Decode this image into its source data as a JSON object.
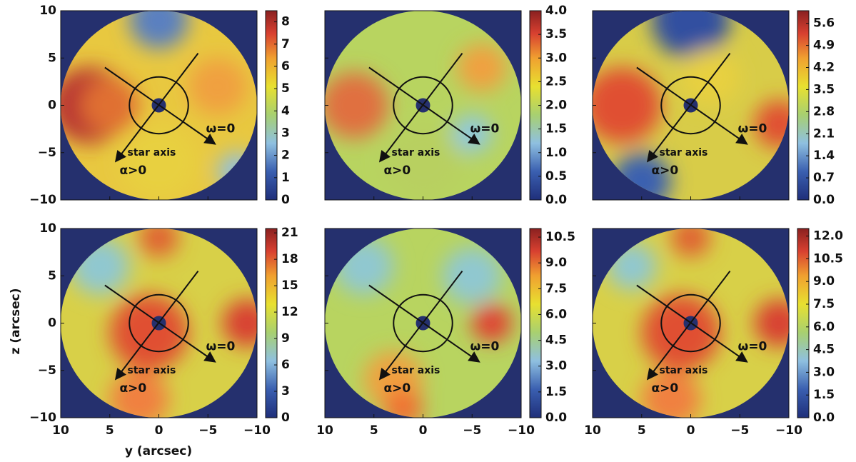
{
  "chart_data": {
    "type": "contour-grid",
    "xlabel": "y (arcsec)",
    "ylabel": "z (arcsec)",
    "xlim": [
      10,
      -10
    ],
    "ylim": [
      -10,
      10
    ],
    "xticks": [
      10,
      5,
      0,
      {
        "value": -5,
        "label": "−5"
      },
      {
        "value": -10,
        "label": "−10"
      }
    ],
    "yticks": [
      {
        "value": -10,
        "label": "−10"
      },
      {
        "value": -5,
        "label": "−5"
      },
      0,
      5,
      10
    ],
    "annotations": [
      "star axis",
      "α>0",
      "ω=0"
    ],
    "panels": [
      {
        "clim": [
          0,
          8.5
        ],
        "cticks": [
          0,
          1,
          2,
          3,
          4,
          5,
          6,
          7,
          8
        ]
      },
      {
        "clim": [
          0,
          4
        ],
        "cticks": [
          {
            "value": 0,
            "label": "0.0"
          },
          0.5,
          {
            "value": 1,
            "label": "1.0"
          },
          1.5,
          {
            "value": 2,
            "label": "2.0"
          },
          2.5,
          {
            "value": 3,
            "label": "3.0"
          },
          3.5,
          {
            "value": 4,
            "label": "4.0"
          }
        ]
      },
      {
        "clim": [
          0,
          6
        ],
        "cticks": [
          {
            "value": 0,
            "label": "0.0"
          },
          0.7,
          1.4,
          2.1,
          2.8,
          3.5,
          4.2,
          4.9,
          5.6
        ]
      },
      {
        "clim": [
          0,
          21.5
        ],
        "cticks": [
          0,
          3,
          6,
          9,
          12,
          15,
          18,
          21
        ]
      },
      {
        "clim": [
          0,
          11
        ],
        "cticks": [
          {
            "value": 0,
            "label": "0.0"
          },
          1.5,
          {
            "value": 3,
            "label": "3.0"
          },
          4.5,
          {
            "value": 6,
            "label": "6.0"
          },
          7.5,
          {
            "value": 9,
            "label": "9.0"
          },
          10.5
        ]
      },
      {
        "clim": [
          0,
          12.5
        ],
        "cticks": [
          {
            "value": 0,
            "label": "0.0"
          },
          1.5,
          {
            "value": 3,
            "label": "3.0"
          },
          4.5,
          {
            "value": 6,
            "label": "6.0"
          },
          7.5,
          {
            "value": 9,
            "label": "9.0"
          },
          10.5,
          {
            "value": 12,
            "label": "12.0"
          }
        ]
      }
    ]
  }
}
